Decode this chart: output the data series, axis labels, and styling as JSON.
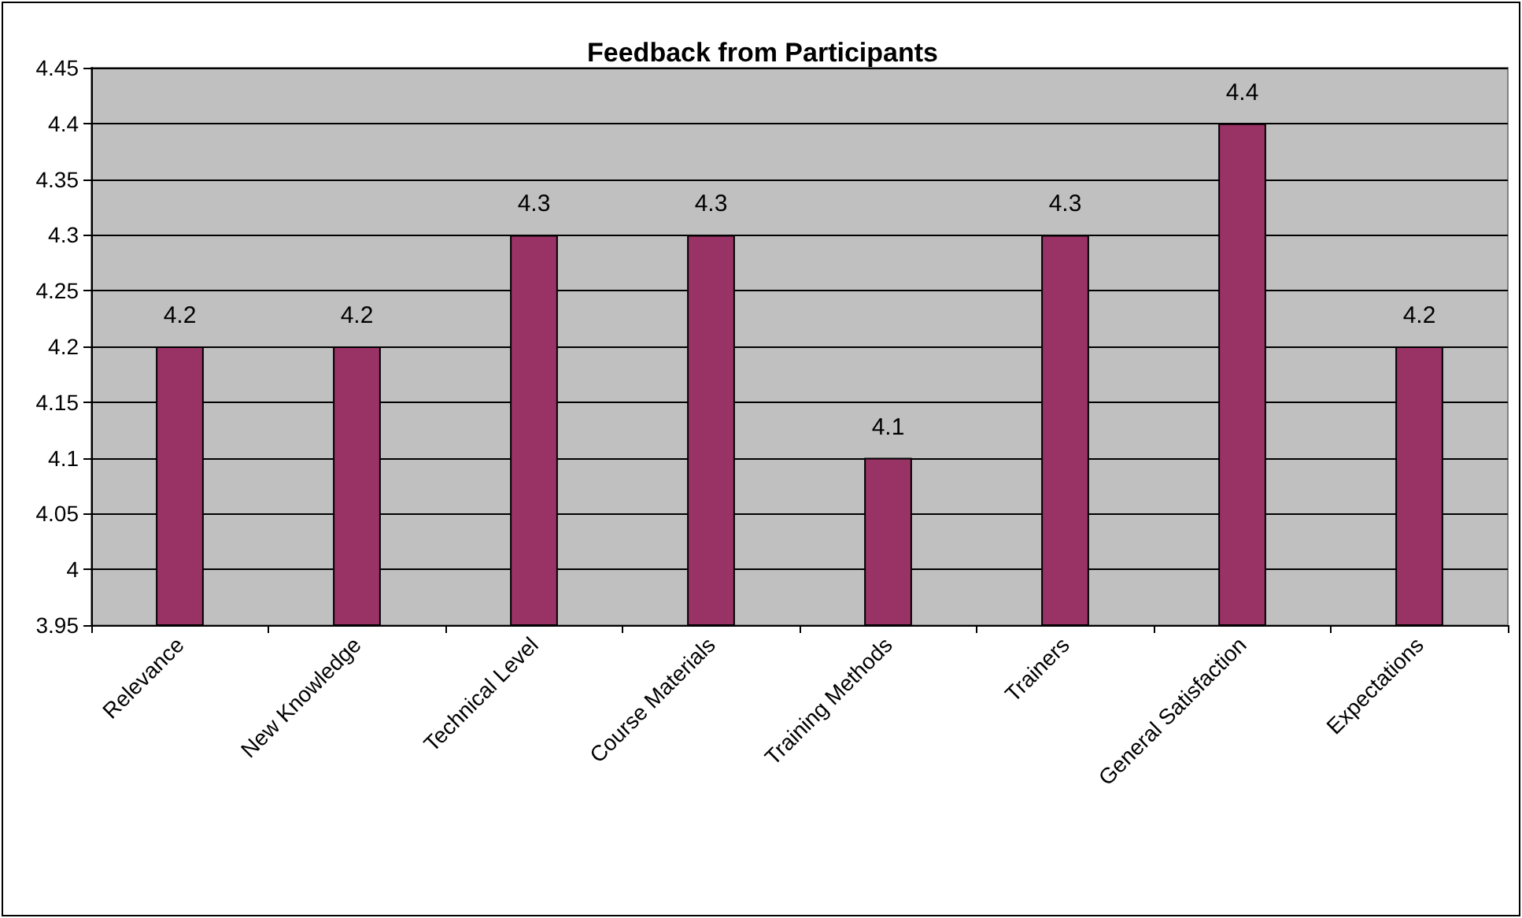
{
  "chart_data": {
    "type": "bar",
    "title": "Feedback from Participants",
    "categories": [
      "Relevance",
      "New Knowledge",
      "Technical Level",
      "Course Materials",
      "Training Methods",
      "Trainers",
      "General Satisfaction",
      "Expectations"
    ],
    "values": [
      4.2,
      4.2,
      4.3,
      4.3,
      4.1,
      4.3,
      4.4,
      4.2
    ],
    "color": "#993366",
    "ylim": [
      3.95,
      4.45
    ],
    "yticks": [
      3.95,
      4,
      4.05,
      4.1,
      4.15,
      4.2,
      4.25,
      4.3,
      4.35,
      4.4,
      4.45
    ],
    "grid": "y",
    "data_labels": true
  }
}
